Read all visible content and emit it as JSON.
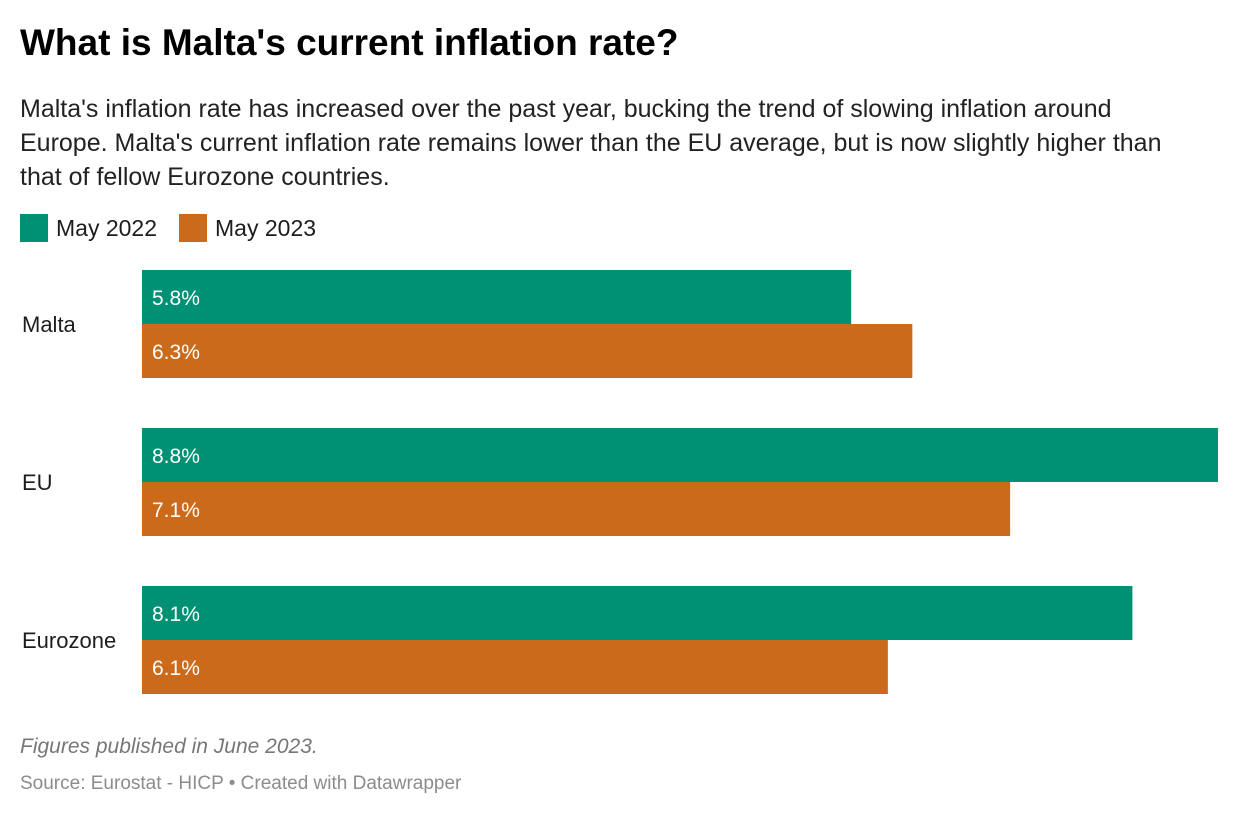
{
  "title": "What is Malta's current inflation rate?",
  "subtitle": "Malta's inflation rate has increased over the past year, bucking the trend of slowing inflation around Europe. Malta's current inflation rate remains lower than the EU average, but is now slightly higher than that of fellow Eurozone countries.",
  "notes": "Figures published in June 2023.",
  "source": "Source: Eurostat - HICP • Created with Datawrapper",
  "chart_data": {
    "type": "bar",
    "orientation": "horizontal",
    "categories": [
      "Malta",
      "EU",
      "Eurozone"
    ],
    "series": [
      {
        "name": "May 2022",
        "color": "#009175",
        "values": [
          5.8,
          8.8,
          8.1
        ],
        "labels": [
          "5.8%",
          "8.8%",
          "8.1%"
        ]
      },
      {
        "name": "May 2023",
        "color": "#cc6a1b",
        "values": [
          6.3,
          7.1,
          6.1
        ],
        "labels": [
          "6.3%",
          "7.1%",
          "6.1%"
        ]
      }
    ],
    "xlim": [
      0,
      8.8
    ],
    "grid": false,
    "legend": "top-left"
  }
}
